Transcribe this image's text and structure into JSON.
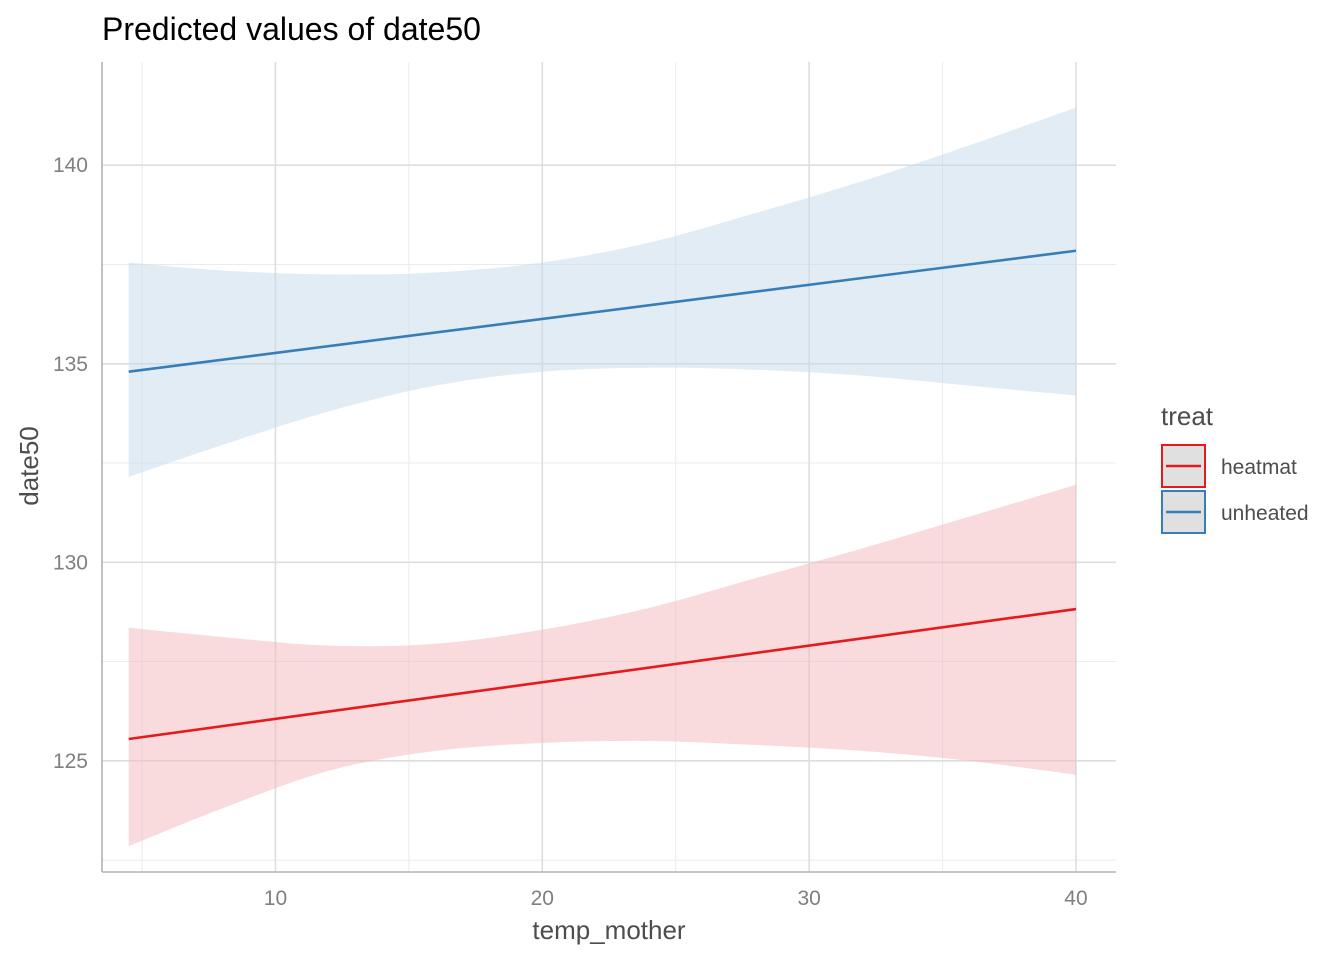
{
  "chart_data": {
    "type": "line",
    "title": "Predicted values of date50",
    "xlabel": "temp_mother",
    "ylabel": "date50",
    "xlim": [
      3.5,
      41.5
    ],
    "ylim": [
      122.2,
      142.6
    ],
    "x_ticks": [
      10,
      20,
      30,
      40
    ],
    "x_minor_ticks": [
      5,
      15,
      25,
      35
    ],
    "y_ticks": [
      125,
      130,
      135,
      140
    ],
    "y_minor_ticks": [
      122.5,
      127.5,
      132.5,
      137.5
    ],
    "grid": true,
    "legend": {
      "title": "treat",
      "position": "right"
    },
    "series": [
      {
        "name": "heatmat",
        "color": "#e41a1c",
        "ribbon_color": "#f4b6bb",
        "x": [
          4.5,
          8,
          12,
          16,
          20,
          24,
          28,
          32,
          36,
          40
        ],
        "y": [
          125.55,
          125.92,
          126.35,
          126.77,
          127.2,
          127.62,
          128.05,
          128.47,
          128.9,
          128.3
        ],
        "lower": [
          122.85,
          123.8,
          124.75,
          125.25,
          125.45,
          125.5,
          125.4,
          125.25,
          125.0,
          124.65
        ],
        "upper": [
          128.35,
          128.12,
          127.9,
          127.95,
          128.3,
          128.85,
          129.6,
          130.35,
          131.15,
          131.95
        ]
      },
      {
        "name": "unheated",
        "color": "#377eb8",
        "ribbon_color": "#c6d9ec",
        "x": [
          4.5,
          8,
          12,
          16,
          20,
          24,
          28,
          32,
          36,
          40
        ],
        "y": [
          134.8,
          135.1,
          135.45,
          135.8,
          136.15,
          136.5,
          136.85,
          137.15,
          137.5,
          137.85
        ],
        "lower": [
          132.15,
          132.95,
          133.8,
          134.45,
          134.8,
          134.9,
          134.85,
          134.7,
          134.45,
          134.2
        ],
        "upper": [
          137.55,
          137.35,
          137.25,
          137.3,
          137.55,
          138.05,
          138.8,
          139.6,
          140.5,
          141.45
        ]
      }
    ]
  }
}
